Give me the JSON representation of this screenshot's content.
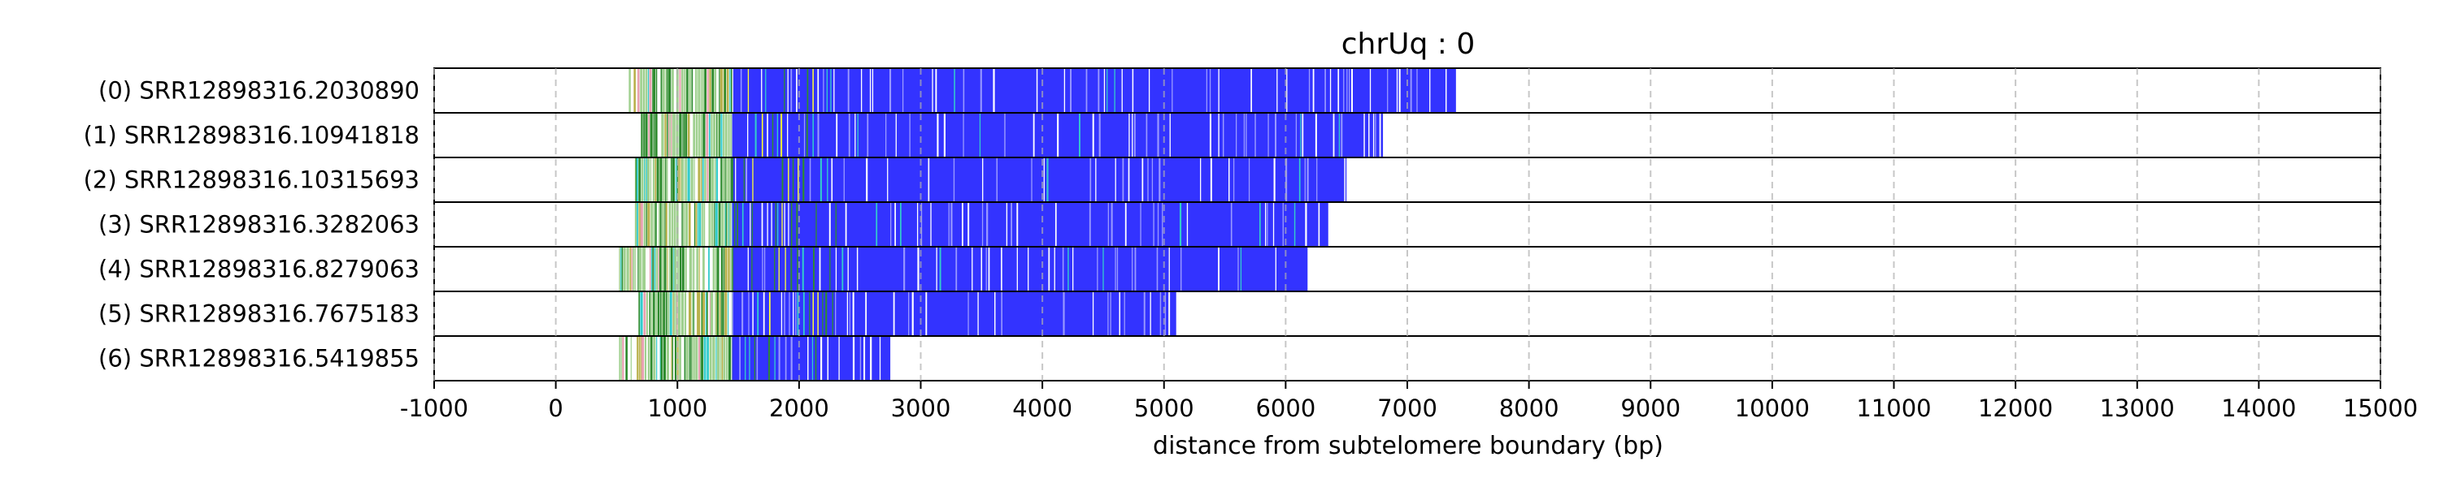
{
  "chart_data": {
    "type": "bar",
    "title": "chrUq : 0",
    "xlabel": "distance from subtelomere boundary (bp)",
    "xlim": [
      -1000,
      15000
    ],
    "xticks": [
      "-1000",
      "0",
      "1000",
      "2000",
      "3000",
      "4000",
      "5000",
      "6000",
      "7000",
      "8000",
      "9000",
      "10000",
      "11000",
      "12000",
      "13000",
      "14000",
      "15000"
    ],
    "grid": "vertical dashed",
    "reads": [
      {
        "label": "(0) SRR12898316.2030890",
        "start": 600,
        "end": 7400
      },
      {
        "label": "(1) SRR12898316.10941818",
        "start": 700,
        "end": 6800
      },
      {
        "label": "(2) SRR12898316.10315693",
        "start": 650,
        "end": 6500
      },
      {
        "label": "(3) SRR12898316.3282063",
        "start": 650,
        "end": 6350
      },
      {
        "label": "(4) SRR12898316.8279063",
        "start": 520,
        "end": 6180
      },
      {
        "label": "(5) SRR12898316.7675183",
        "start": 680,
        "end": 5100
      },
      {
        "label": "(6) SRR12898316.5419855",
        "start": 520,
        "end": 2750
      }
    ],
    "colors": {
      "repeat": "#3333ff",
      "repeat_light": "#9999ff",
      "variant_green": "#2e8b2e",
      "variant_light_green": "#9fd08f",
      "variant_yellow": "#ffff33",
      "variant_cyan": "#33cccc",
      "variant_olive": "#b8b04a",
      "variant_pink": "#e8a0b0"
    }
  }
}
